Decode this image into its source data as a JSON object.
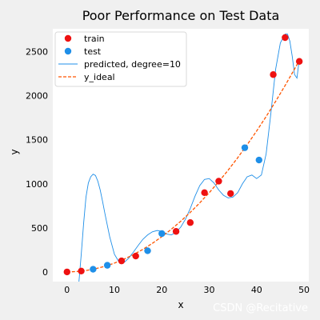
{
  "chart_data": {
    "type": "scatter",
    "title": "Poor Performance on Test Data",
    "xlabel": "x",
    "ylabel": "y",
    "xlim": [
      -3,
      51
    ],
    "ylim": [
      -110,
      2760
    ],
    "xticks": [
      0,
      10,
      20,
      30,
      40,
      50
    ],
    "yticks": [
      0,
      500,
      1000,
      1500,
      2000,
      2500
    ],
    "grid": false,
    "legend_position": "top-left",
    "series": [
      {
        "name": "train",
        "kind": "scatter",
        "color": "#ee1111",
        "x": [
          0,
          3,
          11.5,
          14.5,
          23,
          26,
          29,
          32,
          34.5,
          43.5,
          46,
          49
        ],
        "y": [
          0,
          10,
          125,
          180,
          460,
          560,
          900,
          1030,
          890,
          2240,
          2660,
          2390
        ]
      },
      {
        "name": "test",
        "kind": "scatter",
        "color": "#1f8fe8",
        "x": [
          5.5,
          8.5,
          17,
          20,
          37.5,
          40.5
        ],
        "y": [
          30,
          75,
          240,
          435,
          1410,
          1270
        ]
      },
      {
        "name": "predicted, degree=10",
        "kind": "line",
        "color": "#1f8fe8",
        "x": [
          2.5,
          3,
          3.5,
          4,
          4.5,
          5,
          5.5,
          6,
          6.5,
          7,
          7.5,
          8,
          9,
          10,
          11,
          12,
          13,
          14,
          15,
          16,
          17,
          18,
          19,
          20,
          21,
          22,
          23,
          24,
          25,
          26,
          27,
          28,
          29,
          30,
          31,
          32,
          33,
          34,
          35,
          36,
          37,
          38,
          39,
          40,
          41,
          42,
          43,
          44,
          45,
          46,
          46.5,
          47,
          47.5,
          48,
          48.5,
          49
        ],
        "y": [
          -120,
          200,
          550,
          850,
          1010,
          1080,
          1110,
          1095,
          1030,
          930,
          800,
          660,
          400,
          200,
          110,
          105,
          155,
          225,
          300,
          370,
          420,
          455,
          470,
          460,
          430,
          420,
          450,
          510,
          600,
          720,
          860,
          980,
          1050,
          1060,
          1010,
          930,
          870,
          840,
          850,
          900,
          1000,
          1080,
          1100,
          1060,
          1100,
          1340,
          1800,
          2300,
          2600,
          2700,
          2700,
          2620,
          2450,
          2240,
          2200,
          2420
        ]
      },
      {
        "name": "y_ideal",
        "kind": "dashed-line",
        "color": "#ff5500",
        "x": [
          0,
          2,
          4,
          6,
          8,
          10,
          12,
          14,
          16,
          18,
          20,
          22,
          24,
          26,
          28,
          30,
          32,
          34,
          36,
          38,
          40,
          42,
          44,
          46,
          48,
          49
        ],
        "y": [
          0,
          4,
          16,
          36,
          64,
          100,
          144,
          196,
          256,
          324,
          400,
          484,
          576,
          676,
          784,
          900,
          1024,
          1156,
          1296,
          1444,
          1600,
          1764,
          1936,
          2116,
          2304,
          2401
        ]
      }
    ]
  },
  "watermark": "CSDN @Recitative"
}
